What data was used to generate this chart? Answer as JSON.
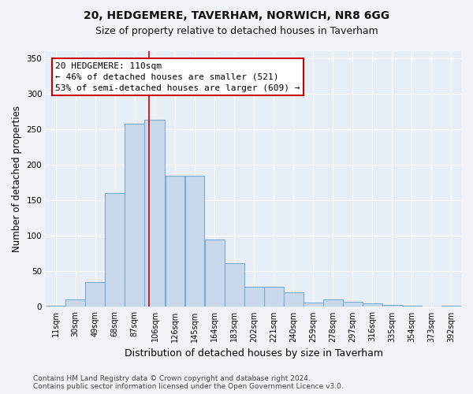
{
  "title1": "20, HEDGEMERE, TAVERHAM, NORWICH, NR8 6GG",
  "title2": "Size of property relative to detached houses in Taverham",
  "xlabel": "Distribution of detached houses by size in Taverham",
  "ylabel": "Number of detached properties",
  "footnote1": "Contains HM Land Registry data © Crown copyright and database right 2024.",
  "footnote2": "Contains public sector information licensed under the Open Government Licence v3.0.",
  "bin_labels": [
    "11sqm",
    "30sqm",
    "49sqm",
    "68sqm",
    "87sqm",
    "106sqm",
    "126sqm",
    "145sqm",
    "164sqm",
    "183sqm",
    "202sqm",
    "221sqm",
    "240sqm",
    "259sqm",
    "278sqm",
    "297sqm",
    "316sqm",
    "335sqm",
    "354sqm",
    "373sqm",
    "392sqm"
  ],
  "bin_edges": [
    11,
    30,
    49,
    68,
    87,
    106,
    126,
    145,
    164,
    183,
    202,
    221,
    240,
    259,
    278,
    297,
    316,
    335,
    354,
    373,
    392,
    411
  ],
  "bar_heights": [
    2,
    10,
    35,
    160,
    258,
    263,
    185,
    185,
    95,
    62,
    28,
    28,
    21,
    6,
    10,
    7,
    5,
    3,
    2,
    1,
    2
  ],
  "bar_color": "#c9d9ec",
  "bar_edge_color": "#7aaacf",
  "property_sqm": 110,
  "vline_color": "#cc0000",
  "annotation_line1": "20 HEDGEMERE: 110sqm",
  "annotation_line2": "← 46% of detached houses are smaller (521)",
  "annotation_line3": "53% of semi-detached houses are larger (609) →",
  "annotation_box_color": "#ffffff",
  "annotation_box_edge_color": "#cc0000",
  "ylim": [
    0,
    360
  ],
  "fig_bg_color": "#f0f4f8",
  "plot_bg_color": "#e8eef5",
  "grid_color": "#ffffff",
  "title_fontsize": 10,
  "subtitle_fontsize": 9,
  "axis_label_fontsize": 8.5,
  "tick_fontsize": 7,
  "annotation_fontsize": 8,
  "footnote_fontsize": 6.5
}
